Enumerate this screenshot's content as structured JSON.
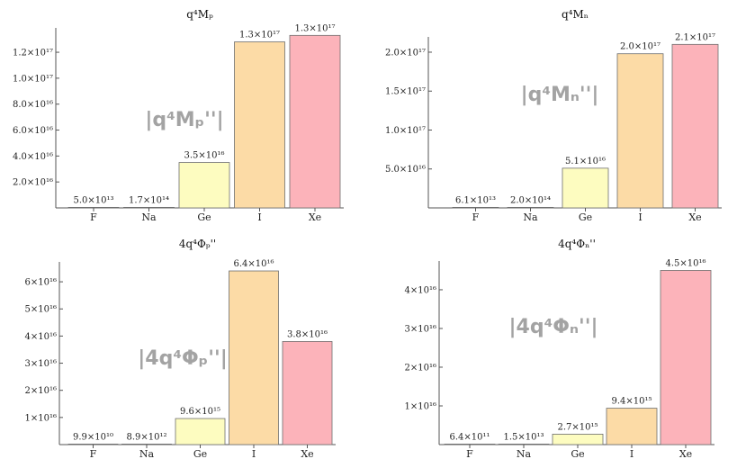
{
  "chart_data": [
    {
      "type": "bar",
      "title": "q⁴Mₚ",
      "annotation": "|q⁴Mₚ''|",
      "categories": [
        "F",
        "Na",
        "Ge",
        "I",
        "Xe"
      ],
      "values": [
        50000000000000.0,
        170000000000000.0,
        3.5e+16,
        1.28e+17,
        1.33e+17
      ],
      "data_labels": [
        "5.0×10¹³",
        "1.7×10¹⁴",
        "3.5×10¹⁶",
        "1.3×10¹⁷",
        "1.3×10¹⁷"
      ],
      "ylim": [
        0,
        1.36e+17
      ],
      "yticks": [
        2e+16,
        4e+16,
        6e+16,
        8e+16,
        1e+17,
        1.2e+17
      ],
      "ytick_labels": [
        "2.0×10¹⁶",
        "4.0×10¹⁶",
        "6.0×10¹⁶",
        "8.0×10¹⁶",
        "1.0×10¹⁷",
        "1.2×10¹⁷"
      ],
      "colors": [
        "#f7f7f7",
        "#f0f0f0",
        "#fdfcc0",
        "#fcdba6",
        "#fcb3ba"
      ]
    },
    {
      "type": "bar",
      "title": "q⁴Mₙ",
      "annotation": "|q⁴Mₙ''|",
      "categories": [
        "F",
        "Na",
        "Ge",
        "I",
        "Xe"
      ],
      "values": [
        61000000000000.0,
        200000000000000.0,
        5.1e+16,
        1.98e+17,
        2.1e+17
      ],
      "data_labels": [
        "6.1×10¹³",
        "2.0×10¹⁴",
        "5.1×10¹⁶",
        "2.0×10¹⁷",
        "2.1×10¹⁷"
      ],
      "ylim": [
        0,
        2.15e+17
      ],
      "yticks": [
        5e+16,
        1e+17,
        1.5e+17,
        2e+17
      ],
      "ytick_labels": [
        "5.0×10¹⁶",
        "1.0×10¹⁷",
        "1.5×10¹⁷",
        "2.0×10¹⁷"
      ],
      "colors": [
        "#f7f7f7",
        "#f0f0f0",
        "#fdfcc0",
        "#fcdba6",
        "#fcb3ba"
      ]
    },
    {
      "type": "bar",
      "title": "4q⁴Φₚ''",
      "annotation": "|4q⁴Φₚ''|",
      "categories": [
        "F",
        "Na",
        "Ge",
        "I",
        "Xe"
      ],
      "values": [
        99000000000.0,
        8900000000000.0,
        9600000000000000.0,
        6.4e+16,
        3.8e+16
      ],
      "data_labels": [
        "9.9×10¹⁰",
        "8.9×10¹²",
        "9.6×10¹⁵",
        "6.4×10¹⁶",
        "3.8×10¹⁶"
      ],
      "ylim": [
        0,
        6.6e+16
      ],
      "yticks": [
        1e+16,
        2e+16,
        3e+16,
        4e+16,
        5e+16,
        6e+16
      ],
      "ytick_labels": [
        "1×10¹⁶",
        "2×10¹⁶",
        "3×10¹⁶",
        "4×10¹⁶",
        "5×10¹⁶",
        "6×10¹⁶"
      ],
      "colors": [
        "#f7f7f7",
        "#f0f0f0",
        "#fdfcc0",
        "#fcdba6",
        "#fcb3ba"
      ]
    },
    {
      "type": "bar",
      "title": "4q⁴Φₙ''",
      "annotation": "|4q⁴Φₙ''|",
      "categories": [
        "F",
        "Na",
        "Ge",
        "I",
        "Xe"
      ],
      "values": [
        640000000000.0,
        15000000000000.0,
        2700000000000000.0,
        9400000000000000.0,
        4.5e+16
      ],
      "data_labels": [
        "6.4×10¹¹",
        "1.5×10¹³",
        "2.7×10¹⁵",
        "9.4×10¹⁵",
        "4.5×10¹⁶"
      ],
      "ylim": [
        0,
        4.65e+16
      ],
      "yticks": [
        1e+16,
        2e+16,
        3e+16,
        4e+16
      ],
      "ytick_labels": [
        "1×10¹⁶",
        "2×10¹⁶",
        "3×10¹⁶",
        "4×10¹⁶"
      ],
      "colors": [
        "#f7f7f7",
        "#f0f0f0",
        "#fdfcc0",
        "#fcdba6",
        "#fcb3ba"
      ]
    }
  ]
}
